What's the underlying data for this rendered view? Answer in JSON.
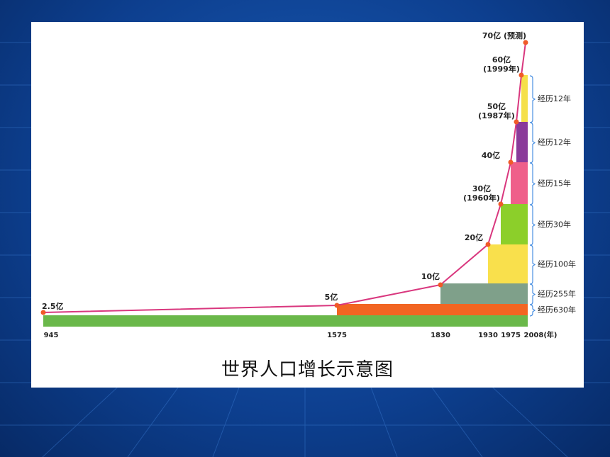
{
  "chart_data": {
    "type": "line",
    "title": "世界人口增长示意图",
    "x_tick_labels": [
      "945",
      "1575",
      "1830",
      "1930",
      "1975",
      "2008(年)"
    ],
    "points": [
      {
        "year": 945,
        "label": "2.5亿",
        "sub": ""
      },
      {
        "year": 1575,
        "label": "5亿",
        "sub": ""
      },
      {
        "year": 1830,
        "label": "10亿",
        "sub": ""
      },
      {
        "year": 1930,
        "label": "20亿",
        "sub": ""
      },
      {
        "year": 1960,
        "label": "30亿",
        "sub": "(1960年)"
      },
      {
        "year": 1975,
        "label": "40亿",
        "sub": ""
      },
      {
        "year": 1987,
        "label": "50亿",
        "sub": "(1987年)"
      },
      {
        "year": 1999,
        "label": "60亿",
        "sub": "(1999年)"
      },
      {
        "year": 2011,
        "label": "70亿 (预测)",
        "sub": ""
      }
    ],
    "population_billion_units": [
      2.5,
      5,
      10,
      20,
      30,
      40,
      50,
      60,
      70
    ],
    "durations": [
      {
        "label": "经历630年",
        "from": "2.5亿",
        "to": "5亿",
        "color": "#f26522"
      },
      {
        "label": "经历255年",
        "from": "5亿",
        "to": "10亿",
        "color": "#7fa08a"
      },
      {
        "label": "经历100年",
        "from": "10亿",
        "to": "20亿",
        "color": "#f9e04c"
      },
      {
        "label": "经历30年",
        "from": "20亿",
        "to": "30亿",
        "color": "#8ccf2a"
      },
      {
        "label": "经历15年",
        "from": "30亿",
        "to": "40亿",
        "color": "#ef5f8a"
      },
      {
        "label": "经历12年",
        "from": "40亿",
        "to": "50亿",
        "color": "#8a3a9a"
      },
      {
        "label": "经历12年",
        "from": "50亿",
        "to": "60亿",
        "color": "#f5e04a"
      }
    ],
    "base_bar_color": "#6ab84a",
    "line_color": "#d9377e",
    "point_color": "#f05a28"
  }
}
